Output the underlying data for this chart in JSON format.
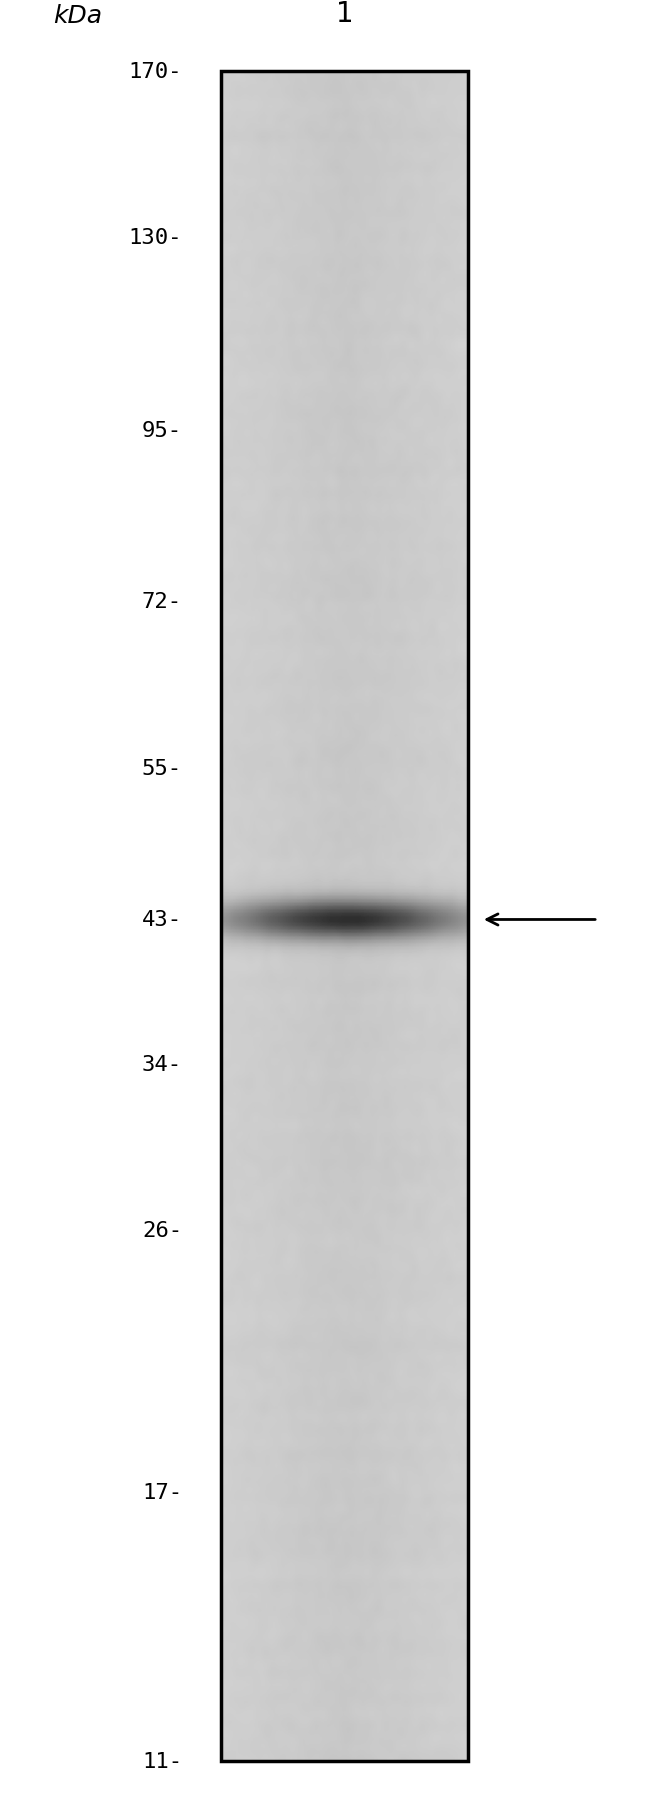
{
  "kda_labels": [
    "170-",
    "130-",
    "95-",
    "72-",
    "55-",
    "43-",
    "34-",
    "26-",
    "17-",
    "11-"
  ],
  "kda_values": [
    170,
    130,
    95,
    72,
    55,
    43,
    34,
    26,
    17,
    11
  ],
  "lane_label": "1",
  "kda_unit": "kDa",
  "band_kda": 43,
  "bg_color": "#c8c8c8",
  "band_color_dark": "#111111",
  "band_color_mid": "#555555",
  "arrow_color": "#000000",
  "lane_bg_light": "#d8d8d8",
  "lane_bg_dark": "#b8b8b8",
  "border_color": "#000000",
  "label_color": "#000000",
  "fig_width": 6.5,
  "fig_height": 18.06,
  "font_size_kda": 16,
  "font_size_label": 18
}
